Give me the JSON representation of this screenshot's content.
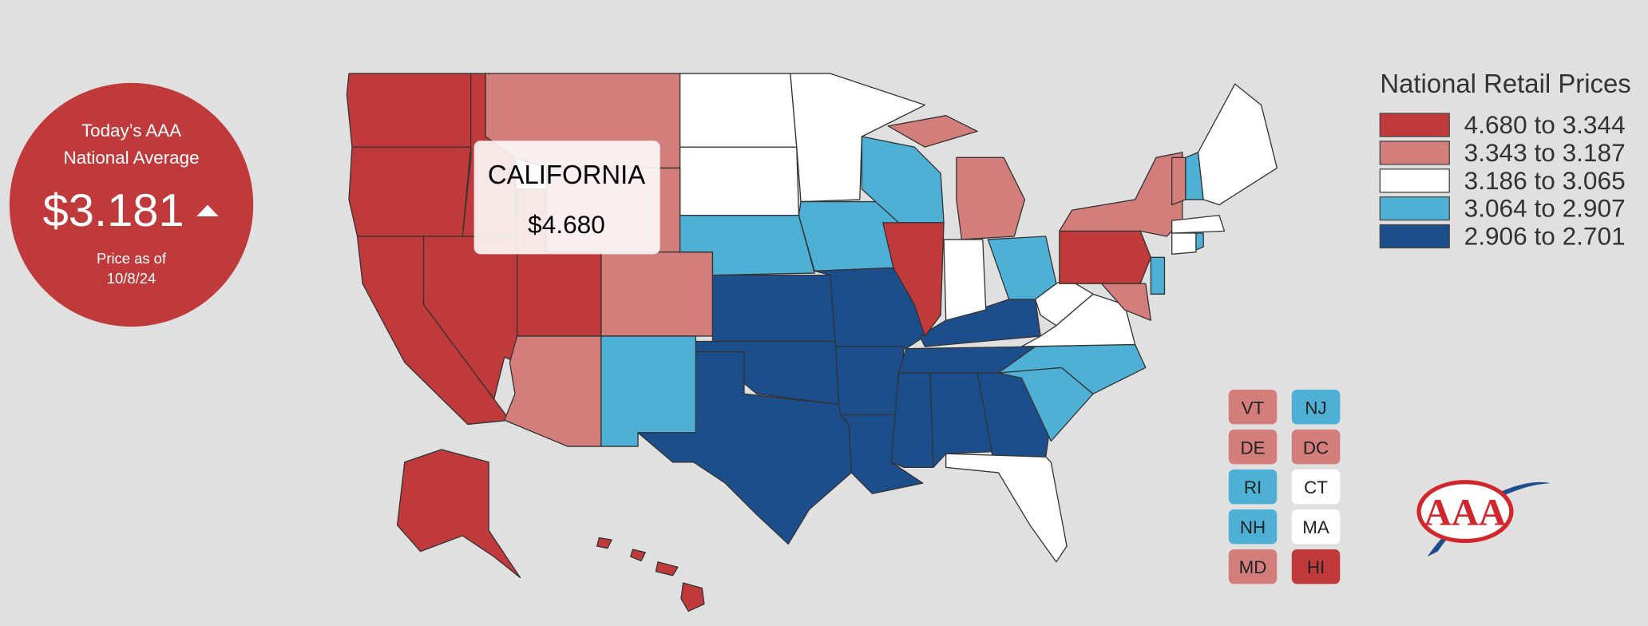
{
  "badge": {
    "line1": "Today’s AAA",
    "line2": "National Average",
    "price": "$3.181",
    "as_of_line1": "Price as of",
    "as_of_line2": "10/8/24",
    "color": "#c0393b"
  },
  "tooltip": {
    "state": "CALIFORNIA",
    "price": "$4.680"
  },
  "legend": {
    "title": "National Retail Prices",
    "items": [
      {
        "label": "4.680 to 3.344",
        "color": "#c0393b"
      },
      {
        "label": "3.343 to 3.187",
        "color": "#d47e7c"
      },
      {
        "label": "3.186 to 3.065",
        "color": "#ffffff"
      },
      {
        "label": "3.064 to 2.907",
        "color": "#4fb0d6"
      },
      {
        "label": "2.906 to 2.701",
        "color": "#1c4e8c"
      }
    ]
  },
  "small_states": [
    {
      "label": "VT",
      "color": "#d47e7c"
    },
    {
      "label": "NJ",
      "color": "#4fb0d6"
    },
    {
      "label": "DE",
      "color": "#d47e7c"
    },
    {
      "label": "DC",
      "color": "#d47e7c"
    },
    {
      "label": "RI",
      "color": "#4fb0d6"
    },
    {
      "label": "CT",
      "color": "#ffffff"
    },
    {
      "label": "NH",
      "color": "#4fb0d6"
    },
    {
      "label": "MA",
      "color": "#ffffff"
    },
    {
      "label": "MD",
      "color": "#d47e7c"
    },
    {
      "label": "HI",
      "color": "#c0393b"
    }
  ],
  "logo": {
    "text": "AAA"
  }
}
